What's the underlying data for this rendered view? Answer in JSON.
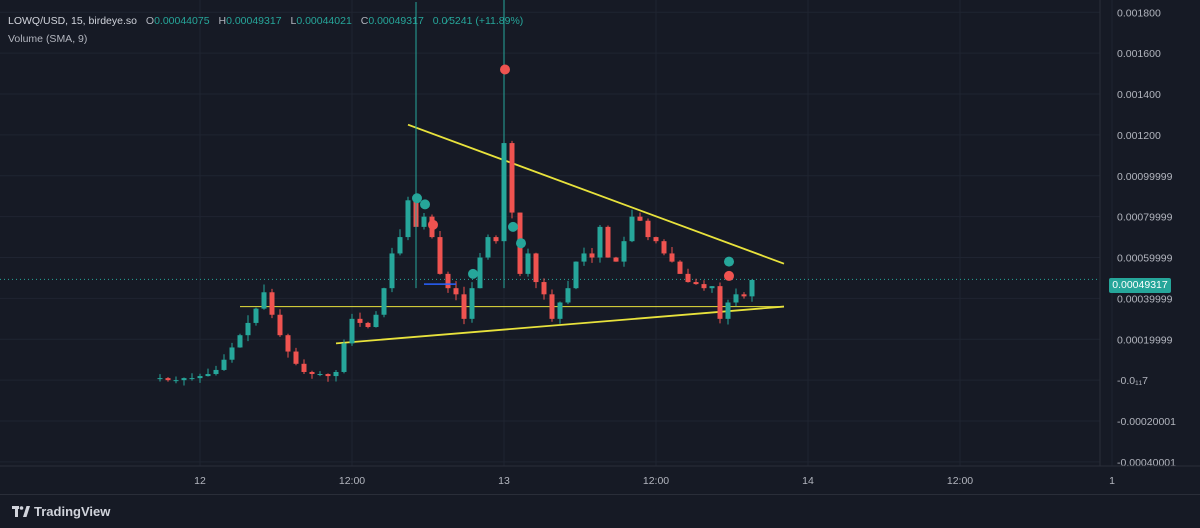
{
  "legend": {
    "symbol": "LOWQ/USD, 15, birdeye.so",
    "open_label": "O",
    "open": "0.00044075",
    "high_label": "H",
    "high": "0.00049317",
    "low_label": "L",
    "low": "0.00044021",
    "close_label": "C",
    "close": "0.00049317",
    "change": "0.0⁄5241 (+11.89%)",
    "volume": "Volume (SMA, 9)"
  },
  "last_price_tag": "0.00049317",
  "brand": "TradingView",
  "colors": {
    "up": "#26a69a",
    "down": "#ef5350",
    "trendline": "#e8e23c",
    "marker_green": "#26a69a",
    "marker_red": "#ef5350"
  },
  "chart_data": {
    "type": "candlestick",
    "x_ticks": [
      "12",
      "12:00",
      "13",
      "12:00",
      "14",
      "12:00",
      "1"
    ],
    "y_ticks": [
      "0.001800",
      "0.001600",
      "0.001400",
      "0.001200",
      "0.00099999",
      "0.00079999",
      "0.00059999",
      "0.00039999",
      "0.00019999",
      "-0.0₁₁7",
      "-0.00020001",
      "-0.00040001"
    ],
    "ylim": [
      -0.00042,
      0.00186
    ],
    "last_price": 0.00049317,
    "close_path": [
      1e-05,
      0.0,
      0.0,
      1e-05,
      1e-05,
      2e-05,
      3e-05,
      5e-05,
      0.0001,
      0.00016,
      0.00022,
      0.00028,
      0.00035,
      0.00043,
      0.00032,
      0.00022,
      0.00014,
      8e-05,
      4e-05,
      3e-05,
      3e-05,
      2e-05,
      4e-05,
      0.00018,
      0.0003,
      0.00028,
      0.00026,
      0.00032,
      0.00045,
      0.00062,
      0.0007,
      0.00088,
      0.00075,
      0.0008,
      0.0007,
      0.00052,
      0.00045,
      0.00042,
      0.0003,
      0.00045,
      0.0006,
      0.0007,
      0.00068,
      0.00116,
      0.00082,
      0.00052,
      0.00062,
      0.00048,
      0.00042,
      0.0003,
      0.00038,
      0.00045,
      0.00058,
      0.00062,
      0.0006,
      0.00075,
      0.0006,
      0.00058,
      0.00068,
      0.0008,
      0.00078,
      0.0007,
      0.00068,
      0.00062,
      0.00058,
      0.00052,
      0.00048,
      0.00047,
      0.00045,
      0.00046,
      0.0003,
      0.00038,
      0.00042,
      0.00041,
      0.00049
    ],
    "markers": [
      {
        "x_index": 32,
        "value": 0.00089,
        "color": "green"
      },
      {
        "x_index": 33,
        "value": 0.00086,
        "color": "green"
      },
      {
        "x_index": 34,
        "value": 0.00076,
        "color": "red"
      },
      {
        "x_index": 39,
        "value": 0.00052,
        "color": "green"
      },
      {
        "x_index": 43,
        "value": 0.00152,
        "color": "red"
      },
      {
        "x_index": 44,
        "value": 0.00075,
        "color": "green"
      },
      {
        "x_index": 45,
        "value": 0.00067,
        "color": "green"
      },
      {
        "x_index": 71,
        "value": 0.00058,
        "color": "green"
      },
      {
        "x_index": 71,
        "value": 0.00051,
        "color": "red"
      }
    ],
    "annotations": [
      {
        "type": "trendline",
        "from": [
          31,
          0.00125
        ],
        "to": [
          78,
          0.00057
        ]
      },
      {
        "type": "trendline",
        "from": [
          22,
          0.00018
        ],
        "to": [
          78,
          0.00036
        ]
      },
      {
        "type": "horizontal",
        "from": [
          10,
          0.00036
        ],
        "to": [
          78,
          0.00036
        ]
      }
    ]
  }
}
